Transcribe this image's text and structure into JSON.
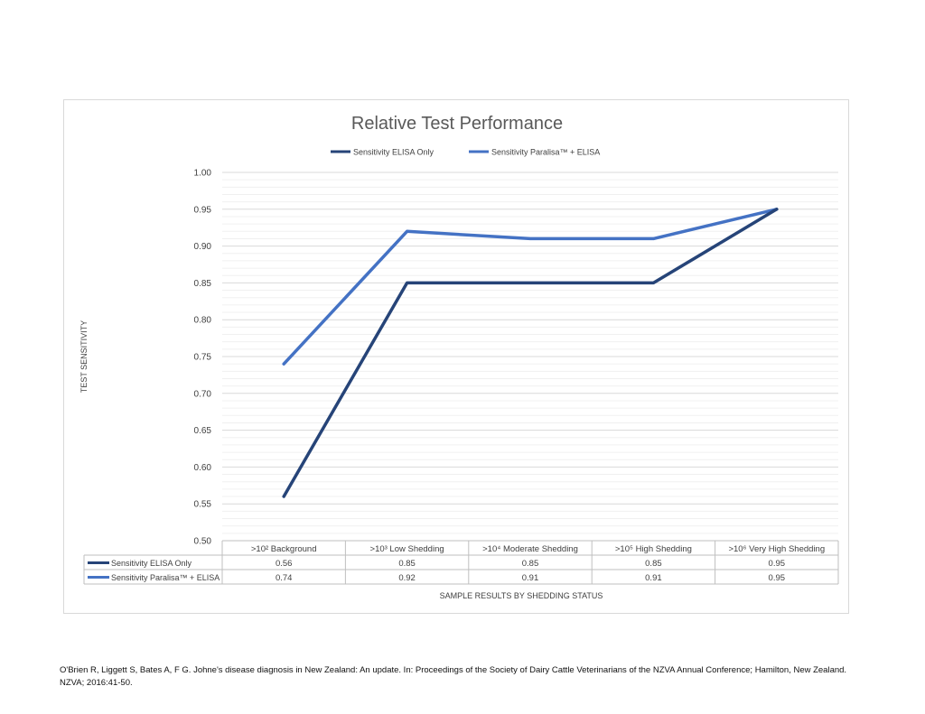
{
  "chart_data": {
    "type": "line",
    "title": "Relative Test Performance",
    "xlabel": "SAMPLE RESULTS BY SHEDDING STATUS",
    "ylabel": "TEST SENSITIVITY",
    "categories": [
      ">10² Background",
      ">10³ Low Shedding",
      ">10⁴ Moderate Shedding",
      ">10⁵ High Shedding",
      ">10⁶ Very High Shedding"
    ],
    "series": [
      {
        "name": "Sensitivity ELISA Only",
        "values": [
          0.56,
          0.85,
          0.85,
          0.85,
          0.95
        ],
        "color": "#264478"
      },
      {
        "name": "Sensitivity Paralisa™ + ELISA",
        "values": [
          0.74,
          0.92,
          0.91,
          0.91,
          0.95
        ],
        "color": "#4472c4"
      }
    ],
    "table_values": [
      [
        "0.56",
        "0.85",
        "0.85",
        "0.85",
        "0.95"
      ],
      [
        "0.74",
        "0.92",
        "0.91",
        "0.91",
        "0.95"
      ]
    ],
    "ylim": [
      0.5,
      1.0
    ],
    "yticks": [
      "0.50",
      "0.55",
      "0.60",
      "0.65",
      "0.70",
      "0.75",
      "0.80",
      "0.85",
      "0.90",
      "0.95",
      "1.00"
    ],
    "legend_position": "top",
    "grid": true,
    "data_table": true
  },
  "citation": "O'Brien R, Liggett S, Bates A, F G. Johne's disease diagnosis in New Zealand: An update. In: Proceedings of the Society of Dairy Cattle Veterinarians of the NZVA Annual Conference; Hamilton, New Zealand. NZVA; 2016:41-50."
}
